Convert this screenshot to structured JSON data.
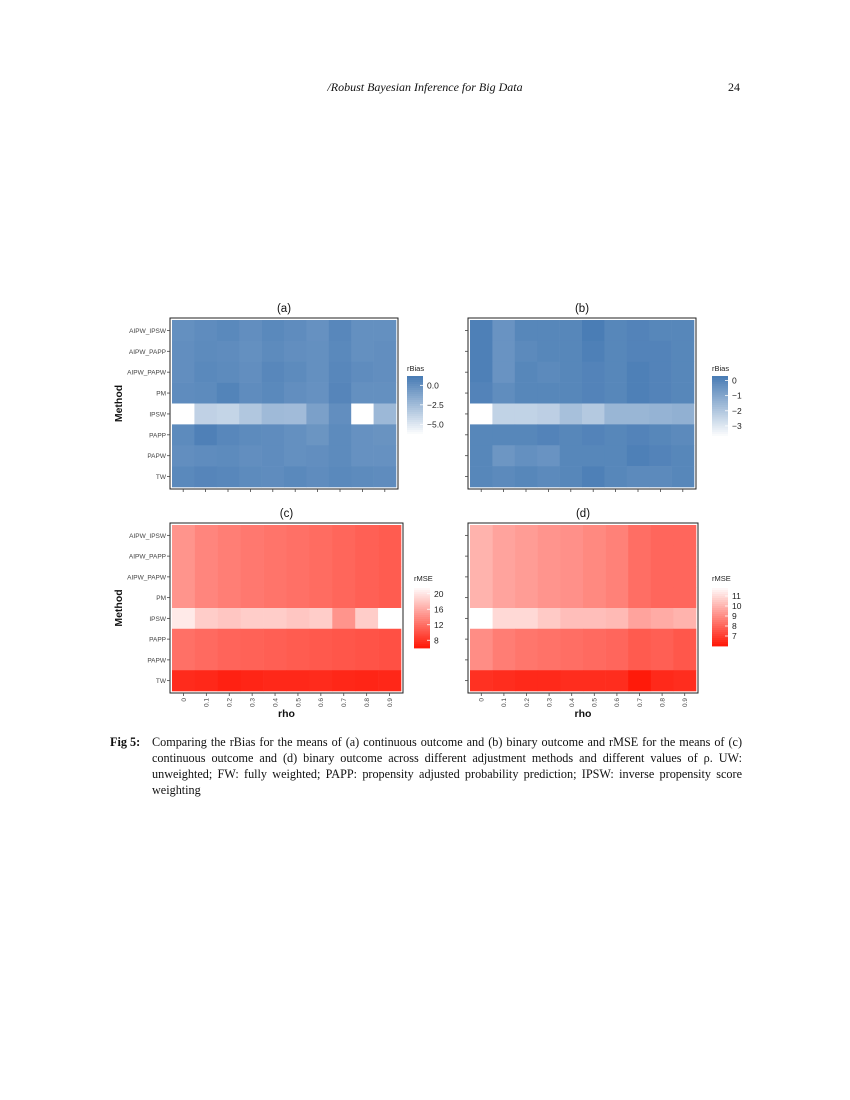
{
  "header": {
    "running_title": "/Robust Bayesian Inference for Big Data",
    "page_number": "24"
  },
  "caption": {
    "label": "Fig 5:",
    "text": "Comparing the rBias for the means of (a) continuous outcome and (b) binary outcome and rMSE for the means of (c) continuous outcome and (d) binary outcome across different adjustment methods and different values of ρ. UW: unweighted; FW: fully weighted; PAPP: propensity adjusted probability prediction; IPSW: inverse propensity score weighting"
  },
  "colors": {
    "blue_high": "#4a7db5",
    "blue_low": "#ffffff",
    "red_low": "#ff1a0a",
    "red_high": "#ffffff"
  },
  "chart_data": [
    {
      "panel": "(a)",
      "type": "heatmap",
      "xlabel": "",
      "ylabel": "Method",
      "x": [
        "0",
        "0.1",
        "0.2",
        "0.3",
        "0.4",
        "0.5",
        "0.6",
        "0.7",
        "0.8",
        "0.9"
      ],
      "x_ticklabels_shown": false,
      "y": [
        "AIPW_IPSW",
        "AIPW_PAPP",
        "AIPW_PAPW",
        "PM",
        "IPSW",
        "PAPP",
        "PAPW",
        "TW"
      ],
      "legend": {
        "title": "rBias",
        "ticks": [
          "0.0",
          "−2.5",
          "−5.0"
        ],
        "tick_values": [
          0,
          -2.5,
          -5
        ],
        "range": [
          -6.5,
          1.2
        ],
        "position": "right"
      },
      "values": [
        [
          0.1,
          0.3,
          0.5,
          0.2,
          0.5,
          0.3,
          0.0,
          0.6,
          0.1,
          0.1
        ],
        [
          0.2,
          0.4,
          0.3,
          0.1,
          0.4,
          0.2,
          0.1,
          0.5,
          0.1,
          0.2
        ],
        [
          0.2,
          0.5,
          0.4,
          0.2,
          0.6,
          0.4,
          0.1,
          0.6,
          0.3,
          0.2
        ],
        [
          0.3,
          0.4,
          0.8,
          0.3,
          0.5,
          0.2,
          0.0,
          0.7,
          0.1,
          0.1
        ],
        [
          -6.5,
          -3.8,
          -4.0,
          -3.2,
          -2.4,
          -2.5,
          -0.9,
          0.2,
          -6.5,
          -2.3
        ],
        [
          0.4,
          1.0,
          0.6,
          0.4,
          0.3,
          0.1,
          -0.2,
          0.4,
          0.0,
          -0.1
        ],
        [
          0.2,
          0.3,
          0.4,
          0.2,
          0.3,
          0.1,
          0.2,
          0.4,
          0.0,
          0.0
        ],
        [
          0.5,
          0.7,
          0.6,
          0.4,
          0.3,
          0.5,
          0.3,
          0.5,
          0.4,
          0.3
        ]
      ]
    },
    {
      "panel": "(b)",
      "type": "heatmap",
      "xlabel": "",
      "ylabel": "",
      "x": [
        "0",
        "0.1",
        "0.2",
        "0.3",
        "0.4",
        "0.5",
        "0.6",
        "0.7",
        "0.8",
        "0.9"
      ],
      "x_ticklabels_shown": false,
      "y": [
        "AIPW_IPSW",
        "AIPW_PAPP",
        "AIPW_PAPW",
        "PM",
        "IPSW",
        "PAPP",
        "PAPW",
        "TW"
      ],
      "legend": {
        "title": "rBias",
        "ticks": [
          "0",
          "−1",
          "−2",
          "−3"
        ],
        "tick_values": [
          0,
          -1,
          -2,
          -3
        ],
        "range": [
          -3.8,
          0.3
        ],
        "position": "right"
      },
      "values": [
        [
          0.2,
          -0.4,
          0.0,
          0.0,
          0.0,
          0.3,
          0.0,
          0.1,
          0.0,
          0.0
        ],
        [
          0.2,
          -0.4,
          -0.1,
          0.0,
          0.0,
          0.2,
          0.0,
          0.1,
          0.1,
          0.0
        ],
        [
          0.2,
          -0.4,
          0.0,
          -0.1,
          0.0,
          0.1,
          0.0,
          0.2,
          0.1,
          0.0
        ],
        [
          0.1,
          -0.2,
          0.0,
          0.0,
          0.0,
          0.1,
          0.0,
          0.2,
          0.1,
          0.0
        ],
        [
          -3.8,
          -2.4,
          -2.4,
          -2.3,
          -1.8,
          -2.1,
          -1.5,
          -1.5,
          -1.4,
          -1.3
        ],
        [
          0.0,
          0.0,
          0.0,
          0.1,
          0.0,
          0.1,
          0.0,
          0.1,
          0.0,
          -0.1
        ],
        [
          0.0,
          -0.5,
          -0.3,
          -0.4,
          0.0,
          0.0,
          0.0,
          0.2,
          0.1,
          0.0
        ],
        [
          0.0,
          -0.1,
          0.0,
          -0.1,
          0.0,
          0.2,
          0.0,
          -0.1,
          -0.1,
          0.0
        ]
      ]
    },
    {
      "panel": "(c)",
      "type": "heatmap",
      "xlabel": "rho",
      "ylabel": "Method",
      "x": [
        "0",
        "0.1",
        "0.2",
        "0.3",
        "0.4",
        "0.5",
        "0.6",
        "0.7",
        "0.8",
        "0.9"
      ],
      "x_ticklabels_shown": true,
      "y": [
        "AIPW_IPSW",
        "AIPW_PAPP",
        "AIPW_PAPW",
        "PM",
        "IPSW",
        "PAPP",
        "PAPW",
        "TW"
      ],
      "legend": {
        "title": "rMSE",
        "ticks": [
          "20",
          "16",
          "12",
          "8"
        ],
        "tick_values": [
          20,
          16,
          12,
          8
        ],
        "range": [
          6,
          22
        ],
        "position": "right"
      },
      "values": [
        [
          14.5,
          13.5,
          13.0,
          12.6,
          12.3,
          12.0,
          11.7,
          11.3,
          10.9,
          10.6
        ],
        [
          14.5,
          13.5,
          13.0,
          12.6,
          12.3,
          12.0,
          11.7,
          11.3,
          10.9,
          10.6
        ],
        [
          14.5,
          13.5,
          13.0,
          12.6,
          12.3,
          12.0,
          11.7,
          11.3,
          10.9,
          10.6
        ],
        [
          14.5,
          13.5,
          13.0,
          12.6,
          12.3,
          12.0,
          11.7,
          11.3,
          10.9,
          10.6
        ],
        [
          20.5,
          18.5,
          18.0,
          18.5,
          18.5,
          18.0,
          18.5,
          14.5,
          18.5,
          22.0
        ],
        [
          12.0,
          11.6,
          11.2,
          11.0,
          10.8,
          10.6,
          10.4,
          10.2,
          10.0,
          9.8
        ],
        [
          12.0,
          11.6,
          11.2,
          11.0,
          10.8,
          10.6,
          10.4,
          10.2,
          10.0,
          9.8
        ],
        [
          7.2,
          7.0,
          6.5,
          6.8,
          7.0,
          7.0,
          7.2,
          6.9,
          6.8,
          6.9
        ]
      ]
    },
    {
      "panel": "(d)",
      "type": "heatmap",
      "xlabel": "rho",
      "ylabel": "",
      "x": [
        "0",
        "0.1",
        "0.2",
        "0.3",
        "0.4",
        "0.5",
        "0.6",
        "0.7",
        "0.8",
        "0.9"
      ],
      "x_ticklabels_shown": true,
      "y": [
        "AIPW_IPSW",
        "AIPW_PAPP",
        "AIPW_PAPW",
        "PM",
        "IPSW",
        "PAPP",
        "PAPW",
        "TW"
      ],
      "legend": {
        "title": "rMSE",
        "ticks": [
          "11",
          "10",
          "9",
          "8",
          "7"
        ],
        "tick_values": [
          11,
          10,
          9,
          8,
          7
        ],
        "range": [
          6,
          12
        ],
        "position": "right"
      },
      "values": [
        [
          10.0,
          9.6,
          9.4,
          9.2,
          9.1,
          8.9,
          8.7,
          8.2,
          8.0,
          8.0
        ],
        [
          10.0,
          9.6,
          9.4,
          9.2,
          9.1,
          8.9,
          8.7,
          8.2,
          8.0,
          8.0
        ],
        [
          10.0,
          9.6,
          9.4,
          9.2,
          9.1,
          8.9,
          8.7,
          8.2,
          8.0,
          8.0
        ],
        [
          10.0,
          9.6,
          9.4,
          9.2,
          9.1,
          8.9,
          8.7,
          8.2,
          8.0,
          8.0
        ],
        [
          12.0,
          11.0,
          11.0,
          10.6,
          10.3,
          10.3,
          10.2,
          9.6,
          9.8,
          10.0
        ],
        [
          9.0,
          8.6,
          8.4,
          8.3,
          8.2,
          8.1,
          8.0,
          7.7,
          7.8,
          7.6
        ],
        [
          9.0,
          8.6,
          8.4,
          8.3,
          8.2,
          8.1,
          8.0,
          7.7,
          7.8,
          7.6
        ],
        [
          6.6,
          6.5,
          6.4,
          6.4,
          6.5,
          6.5,
          6.5,
          6.0,
          6.4,
          6.5
        ]
      ]
    }
  ]
}
